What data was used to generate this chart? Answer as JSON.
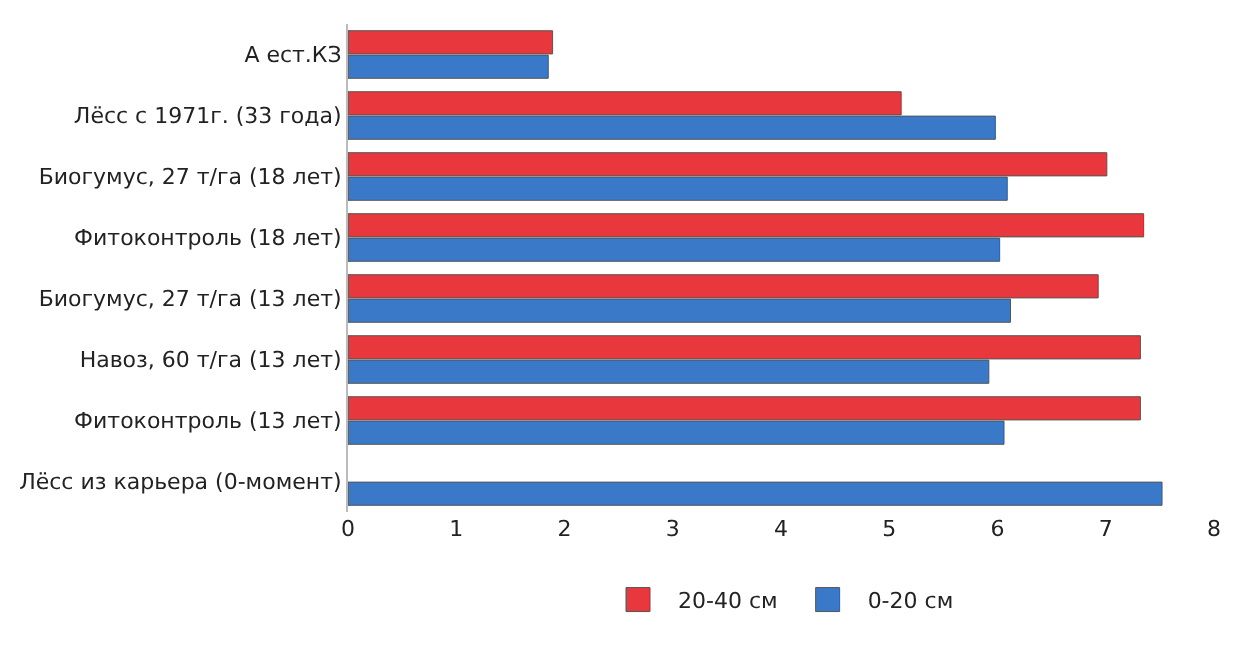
{
  "chart_data": {
    "type": "bar",
    "orientation": "horizontal",
    "categories": [
      "А ест.КЗ",
      "Лёсс с 1971г. (33 года)",
      "Биогумус, 27 т/га (18 лет)",
      "Фитоконтроль (18 лет)",
      "Биогумус, 27 т/га (13 лет)",
      "Навоз, 60 т/га (13 лет)",
      "Фитоконтроль (13 лет)",
      "Лёсс из карьера (0-момент)"
    ],
    "series": [
      {
        "name": "20-40 см",
        "color": "#e8383d",
        "values": [
          1.89,
          5.11,
          7.01,
          7.35,
          6.93,
          7.32,
          7.32,
          null
        ]
      },
      {
        "name": "0-20 см",
        "color": "#3a78c8",
        "values": [
          1.85,
          5.98,
          6.09,
          6.02,
          6.12,
          5.92,
          6.06,
          7.52
        ]
      }
    ],
    "xlim": [
      0,
      8
    ],
    "xticks": [
      0,
      1,
      2,
      3,
      4,
      5,
      6,
      7,
      8
    ],
    "legend": "bottom"
  }
}
